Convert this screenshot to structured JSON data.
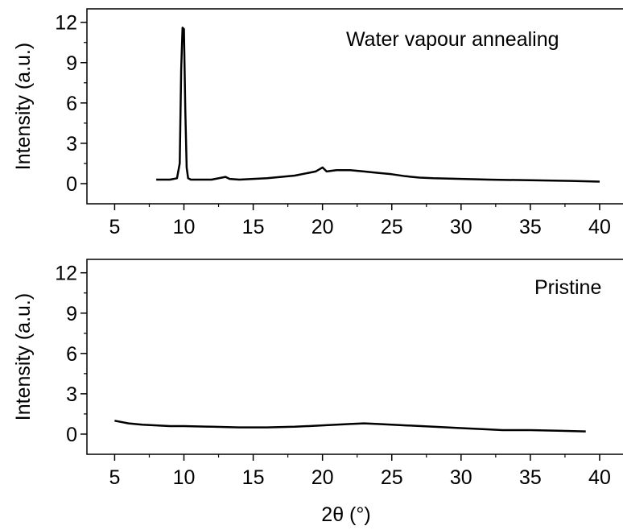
{
  "chart_data": [
    {
      "type": "line",
      "title": "",
      "annotation": "Water vapour annealing",
      "ylabel": "Intensity (a.u.)",
      "xlabel": "",
      "xlim": [
        3.0,
        42.5
      ],
      "ylim": [
        -1.5,
        13.0
      ],
      "xticks": [
        5,
        10,
        15,
        20,
        25,
        30,
        35,
        40
      ],
      "yticks": [
        0,
        3,
        6,
        9,
        12
      ],
      "grid": false,
      "series": [
        {
          "x": [
            8,
            9,
            9.5,
            9.7,
            9.8,
            9.9,
            10.0,
            10.1,
            10.2,
            10.3,
            10.5,
            11,
            12,
            13,
            13.3,
            14,
            15,
            16,
            17,
            18,
            19,
            19.5,
            20,
            20.3,
            21,
            22,
            23,
            24,
            25,
            26,
            27,
            28,
            30,
            32,
            35,
            38,
            40
          ],
          "y": [
            0.3,
            0.3,
            0.4,
            1.5,
            8.5,
            11.6,
            11.5,
            5.5,
            1.2,
            0.4,
            0.3,
            0.3,
            0.3,
            0.5,
            0.35,
            0.3,
            0.35,
            0.4,
            0.5,
            0.6,
            0.8,
            0.9,
            1.2,
            0.9,
            1.0,
            1.0,
            0.9,
            0.8,
            0.7,
            0.55,
            0.45,
            0.4,
            0.35,
            0.3,
            0.25,
            0.2,
            0.15
          ]
        }
      ]
    },
    {
      "type": "line",
      "title": "",
      "annotation": "Pristine",
      "ylabel": "Intensity (a.u.)",
      "xlabel": "2θ (°)",
      "xlim": [
        3.0,
        42.5
      ],
      "ylim": [
        -1.5,
        13.0
      ],
      "xticks": [
        5,
        10,
        15,
        20,
        25,
        30,
        35,
        40
      ],
      "yticks": [
        0,
        3,
        6,
        9,
        12
      ],
      "grid": false,
      "series": [
        {
          "x": [
            5,
            6,
            7,
            8,
            9,
            10,
            12,
            14,
            15,
            16,
            18,
            20,
            21,
            22,
            23,
            24,
            25,
            26,
            28,
            30,
            32,
            33,
            35,
            37,
            39
          ],
          "y": [
            1.0,
            0.8,
            0.7,
            0.65,
            0.6,
            0.6,
            0.55,
            0.5,
            0.5,
            0.5,
            0.55,
            0.65,
            0.7,
            0.75,
            0.8,
            0.75,
            0.7,
            0.65,
            0.55,
            0.45,
            0.35,
            0.3,
            0.3,
            0.25,
            0.2
          ]
        }
      ]
    }
  ]
}
